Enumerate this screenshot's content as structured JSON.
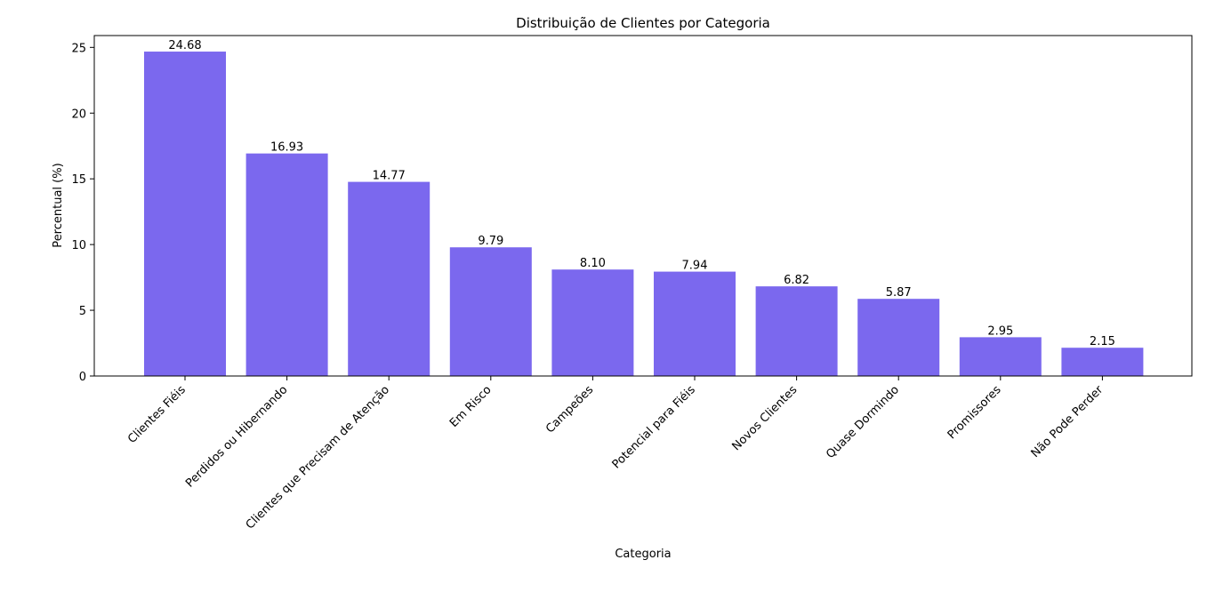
{
  "chart_data": {
    "type": "bar",
    "title": "Distribuição de Clientes por Categoria",
    "xlabel": "Categoria",
    "ylabel": "Percentual (%)",
    "categories": [
      "Clientes Fiéis",
      "Perdidos ou Hibernando",
      "Clientes que Precisam de Atenção",
      "Em Risco",
      "Campeões",
      "Potencial para Fiéis",
      "Novos Clientes",
      "Quase Dormindo",
      "Promissores",
      "Não Pode Perder"
    ],
    "values": [
      24.68,
      16.93,
      14.77,
      9.79,
      8.1,
      7.94,
      6.82,
      5.87,
      2.95,
      2.15
    ],
    "value_labels": [
      "24.68",
      "16.93",
      "14.77",
      "9.79",
      "8.10",
      "7.94",
      "6.82",
      "5.87",
      "2.95",
      "2.15"
    ],
    "ylim": [
      0,
      25.9
    ],
    "yticks": [
      0,
      5,
      10,
      15,
      20,
      25
    ],
    "grid": false,
    "bar_color": "#7B68EE"
  }
}
